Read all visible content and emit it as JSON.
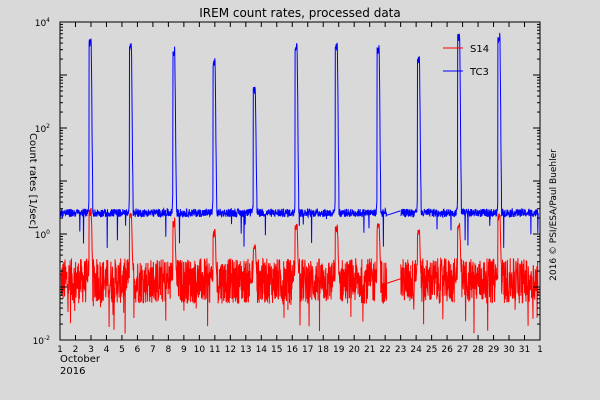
{
  "chart_data": {
    "type": "line",
    "title": "IREM count rates, processed data",
    "ylabel": "Count rates [1/sec]",
    "x_month": "October",
    "x_year": "2016",
    "credit": "2016 © PSI/ESA/Paul Buehler",
    "xlim": [
      1,
      32
    ],
    "ylim": [
      0.01,
      10000
    ],
    "y_scale": "log",
    "x_ticks": [
      "1",
      "2",
      "3",
      "4",
      "5",
      "6",
      "7",
      "8",
      "9",
      "10",
      "11",
      "12",
      "13",
      "14",
      "15",
      "16",
      "17",
      "18",
      "19",
      "20",
      "21",
      "22",
      "23",
      "24",
      "25",
      "26",
      "27",
      "28",
      "29",
      "30",
      "31",
      "1"
    ],
    "y_ticks": [
      {
        "value": 0.01,
        "base": "10",
        "exp": "-2"
      },
      {
        "value": 1,
        "base": "10",
        "exp": "0"
      },
      {
        "value": 100,
        "base": "10",
        "exp": "2"
      },
      {
        "value": 10000,
        "base": "10",
        "exp": "4"
      }
    ],
    "legend_position": "top-right",
    "data_gap": {
      "start": 22.1,
      "end": 23.0
    },
    "series": [
      {
        "name": "S14",
        "color": "#ff0000",
        "baseline": 0.13,
        "noise_low": 0.05,
        "noise_high": 0.3,
        "spikes": [
          {
            "x": 3.0,
            "peak": 3.0
          },
          {
            "x": 5.6,
            "peak": 2.5
          },
          {
            "x": 8.4,
            "peak": 1.8
          },
          {
            "x": 11.0,
            "peak": 1.2
          },
          {
            "x": 13.6,
            "peak": 0.6
          },
          {
            "x": 16.3,
            "peak": 1.5
          },
          {
            "x": 18.9,
            "peak": 1.4
          },
          {
            "x": 21.6,
            "peak": 1.6
          },
          {
            "x": 24.2,
            "peak": 1.2
          },
          {
            "x": 26.8,
            "peak": 1.5
          },
          {
            "x": 29.4,
            "peak": 2.5
          }
        ]
      },
      {
        "name": "TC3",
        "color": "#0000ff",
        "baseline": 2.5,
        "noise_low": 2.1,
        "noise_high": 2.9,
        "spikes": [
          {
            "x": 3.0,
            "peak": 5000
          },
          {
            "x": 5.6,
            "peak": 4000
          },
          {
            "x": 8.4,
            "peak": 3000
          },
          {
            "x": 11.0,
            "peak": 2000
          },
          {
            "x": 13.6,
            "peak": 600
          },
          {
            "x": 16.3,
            "peak": 4000
          },
          {
            "x": 18.9,
            "peak": 3800
          },
          {
            "x": 21.6,
            "peak": 3500
          },
          {
            "x": 24.2,
            "peak": 2200
          },
          {
            "x": 26.8,
            "peak": 6000
          },
          {
            "x": 29.4,
            "peak": 5500
          }
        ]
      }
    ]
  }
}
